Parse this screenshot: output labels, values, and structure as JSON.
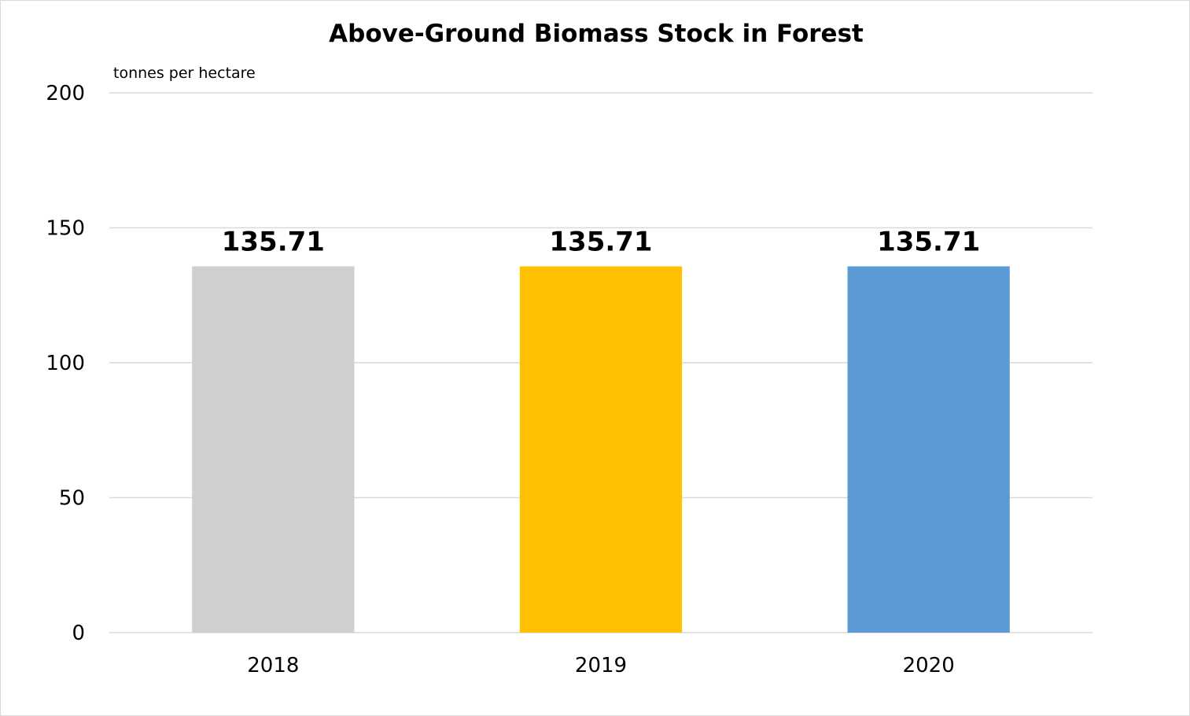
{
  "chart_data": {
    "type": "bar",
    "title": "Above-Ground Biomass Stock in Forest",
    "unit_label": "tonnes per hectare",
    "categories": [
      "2018",
      "2019",
      "2020"
    ],
    "values": [
      135.71,
      135.71,
      135.71
    ],
    "data_labels": [
      "135.71",
      "135.71",
      "135.71"
    ],
    "bar_colors": [
      "#d0cece",
      "#ffc000",
      "#5b9bd5"
    ],
    "ylim": [
      0,
      200
    ],
    "yticks": [
      0,
      50,
      100,
      150,
      200
    ],
    "ytick_labels": [
      "0",
      "50",
      "100",
      "150",
      "200"
    ],
    "grid": true,
    "legend": "none"
  }
}
